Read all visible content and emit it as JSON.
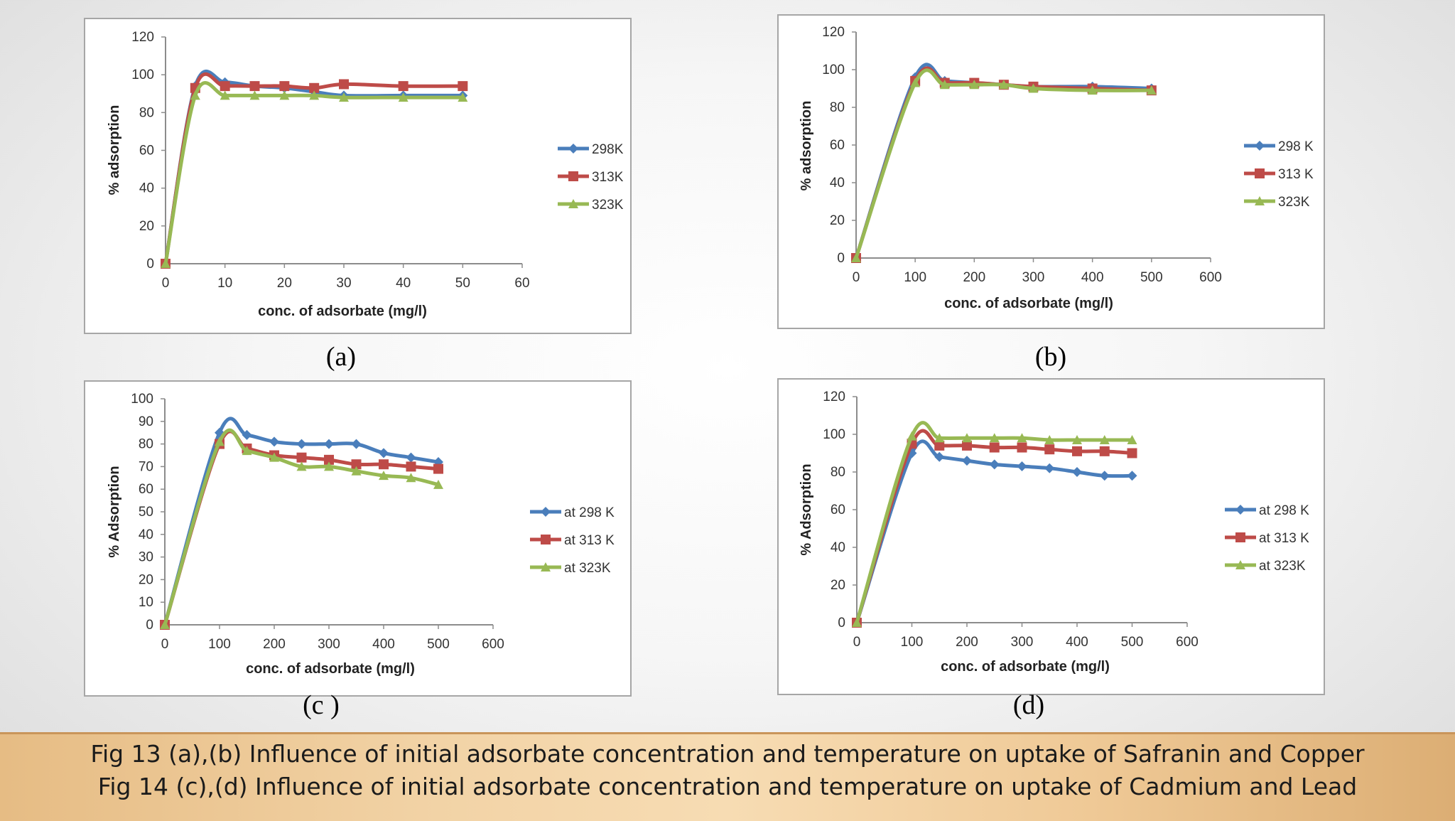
{
  "chart_data": [
    {
      "id": "a",
      "type": "line",
      "title": "",
      "panel_label": "(a)",
      "xlabel": "conc. of adsorbate (mg/l)",
      "ylabel": "% adsorption",
      "xlim": [
        0,
        60
      ],
      "ylim": [
        0,
        120
      ],
      "xticks": [
        0,
        10,
        20,
        30,
        40,
        50,
        60
      ],
      "yticks": [
        0,
        20,
        40,
        60,
        80,
        100,
        120
      ],
      "grid": false,
      "legend": "right",
      "series": [
        {
          "name": "298K",
          "color": "#4a7ebb",
          "marker": "diamond",
          "x": [
            0,
            5,
            10,
            15,
            20,
            25,
            30,
            40,
            50
          ],
          "y": [
            0,
            94,
            96,
            94,
            93,
            91,
            89,
            89,
            89
          ]
        },
        {
          "name": "313K",
          "color": "#be4b48",
          "marker": "square",
          "x": [
            0,
            5,
            10,
            15,
            20,
            25,
            30,
            40,
            50
          ],
          "y": [
            0,
            93,
            94,
            94,
            94,
            93,
            95,
            94,
            94
          ]
        },
        {
          "name": "323K",
          "color": "#98b954",
          "marker": "triangle",
          "x": [
            0,
            5,
            10,
            15,
            20,
            25,
            30,
            40,
            50
          ],
          "y": [
            0,
            89,
            89,
            89,
            89,
            89,
            88,
            88,
            88
          ]
        }
      ]
    },
    {
      "id": "b",
      "type": "line",
      "title": "",
      "panel_label": "(b)",
      "xlabel": "conc. of adsorbate (mg/l)",
      "ylabel": "% adsorption",
      "xlim": [
        0,
        600
      ],
      "ylim": [
        0,
        120
      ],
      "xticks": [
        0,
        100,
        200,
        300,
        400,
        500,
        600
      ],
      "yticks": [
        0,
        20,
        40,
        60,
        80,
        100,
        120
      ],
      "grid": false,
      "legend": "right",
      "series": [
        {
          "name": "298 K",
          "color": "#4a7ebb",
          "marker": "diamond",
          "x": [
            0,
            100,
            150,
            200,
            250,
            300,
            400,
            500
          ],
          "y": [
            0,
            96,
            94,
            93,
            92,
            91,
            91,
            90
          ]
        },
        {
          "name": "313 K",
          "color": "#be4b48",
          "marker": "square",
          "x": [
            0,
            100,
            150,
            200,
            250,
            300,
            400,
            500
          ],
          "y": [
            0,
            94,
            93,
            93,
            92,
            91,
            90,
            89
          ]
        },
        {
          "name": "323K",
          "color": "#98b954",
          "marker": "triangle",
          "x": [
            0,
            100,
            150,
            200,
            250,
            300,
            400,
            500
          ],
          "y": [
            0,
            93,
            92,
            92,
            92,
            90,
            89,
            89
          ]
        }
      ]
    },
    {
      "id": "c",
      "type": "line",
      "title": "",
      "panel_label": "(c )",
      "xlabel": "conc. of adsorbate (mg/l)",
      "ylabel": "% Adsorption",
      "xlim": [
        0,
        600
      ],
      "ylim": [
        0,
        100
      ],
      "xticks": [
        0,
        100,
        200,
        300,
        400,
        500,
        600
      ],
      "yticks": [
        0,
        10,
        20,
        30,
        40,
        50,
        60,
        70,
        80,
        90,
        100
      ],
      "grid": false,
      "legend": "right",
      "series": [
        {
          "name": "at 298 K",
          "color": "#4a7ebb",
          "marker": "diamond",
          "x": [
            0,
            100,
            150,
            200,
            250,
            300,
            350,
            400,
            450,
            500
          ],
          "y": [
            0,
            85,
            84,
            81,
            80,
            80,
            80,
            76,
            74,
            72
          ]
        },
        {
          "name": "at 313 K",
          "color": "#be4b48",
          "marker": "square",
          "x": [
            0,
            100,
            150,
            200,
            250,
            300,
            350,
            400,
            450,
            500
          ],
          "y": [
            0,
            80,
            78,
            75,
            74,
            73,
            71,
            71,
            70,
            69
          ]
        },
        {
          "name": "at 323K",
          "color": "#98b954",
          "marker": "triangle",
          "x": [
            0,
            100,
            150,
            200,
            250,
            300,
            350,
            400,
            450,
            500
          ],
          "y": [
            0,
            81,
            77,
            74,
            70,
            70,
            68,
            66,
            65,
            62
          ]
        }
      ]
    },
    {
      "id": "d",
      "type": "line",
      "title": "",
      "panel_label": "(d)",
      "xlabel": "conc. of adsorbate (mg/l)",
      "ylabel": "% Adsorption",
      "xlim": [
        0,
        600
      ],
      "ylim": [
        0,
        120
      ],
      "xticks": [
        0,
        100,
        200,
        300,
        400,
        500,
        600
      ],
      "yticks": [
        0,
        20,
        40,
        60,
        80,
        100,
        120
      ],
      "grid": false,
      "legend": "right",
      "series": [
        {
          "name": "at 298 K",
          "color": "#4a7ebb",
          "marker": "diamond",
          "x": [
            0,
            100,
            150,
            200,
            250,
            300,
            350,
            400,
            450,
            500
          ],
          "y": [
            0,
            90,
            88,
            86,
            84,
            83,
            82,
            80,
            78,
            78
          ]
        },
        {
          "name": "at 313 K",
          "color": "#be4b48",
          "marker": "square",
          "x": [
            0,
            100,
            150,
            200,
            250,
            300,
            350,
            400,
            450,
            500
          ],
          "y": [
            0,
            95,
            94,
            94,
            93,
            93,
            92,
            91,
            91,
            90
          ]
        },
        {
          "name": "at 323K",
          "color": "#98b954",
          "marker": "triangle",
          "x": [
            0,
            100,
            150,
            200,
            250,
            300,
            350,
            400,
            450,
            500
          ],
          "y": [
            0,
            99,
            98,
            98,
            98,
            98,
            97,
            97,
            97,
            97
          ]
        }
      ]
    }
  ],
  "caption": {
    "line1": "Fig 13 (a),(b) Influence of initial adsorbate concentration and temperature on uptake of Safranin and Copper",
    "line2": "Fig 14 (c),(d) Influence of initial adsorbate concentration and temperature on uptake of Cadmium and Lead"
  }
}
